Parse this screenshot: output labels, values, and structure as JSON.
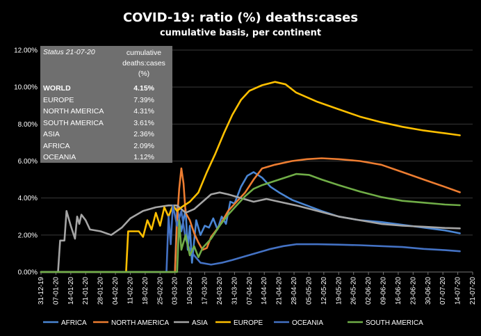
{
  "chart_data": {
    "type": "line",
    "title": "COVID-19:  ratio  (%)  deaths:cases",
    "subtitle": "cumulative basis, per continent",
    "y_ticks": [
      "0.00%",
      "2.00%",
      "4.00%",
      "6.00%",
      "8.00%",
      "10.00%",
      "12.00%"
    ],
    "ylim": [
      0,
      12
    ],
    "x_ticks": [
      "31-12-19",
      "07-01-20",
      "14-01-20",
      "21-01-20",
      "28-01-20",
      "04-02-20",
      "11-02-20",
      "18-02-20",
      "25-02-20",
      "03-03-20",
      "10-03-20",
      "17-03-20",
      "24-03-20",
      "31-03-20",
      "07-04-20",
      "14-04-20",
      "21-04-20",
      "28-04-20",
      "05-05-20",
      "12-05-20",
      "19-05-20",
      "26-05-20",
      "02-06-20",
      "09-06-20",
      "16-06-20",
      "23-06-20",
      "30-06-20",
      "07-07-20",
      "14-07-20",
      "21-07-20"
    ],
    "grid": true,
    "legend_position": "bottom",
    "series": [
      {
        "name": "AFRICA",
        "color": "#4a86d4",
        "points": [
          [
            0,
            0
          ],
          [
            63,
            0
          ],
          [
            64,
            3.5
          ],
          [
            66,
            2.2
          ],
          [
            68,
            3.4
          ],
          [
            69,
            1.2
          ],
          [
            70,
            2.5
          ],
          [
            71,
            0.5
          ],
          [
            73,
            2.8
          ],
          [
            75,
            2.0
          ],
          [
            77,
            2.5
          ],
          [
            79,
            2.4
          ],
          [
            81,
            2.9
          ],
          [
            83,
            2.3
          ],
          [
            85,
            3.0
          ],
          [
            87,
            2.6
          ],
          [
            89,
            3.8
          ],
          [
            91,
            3.7
          ],
          [
            94,
            4.6
          ],
          [
            97,
            5.2
          ],
          [
            100,
            5.4
          ],
          [
            104,
            5.1
          ],
          [
            108,
            4.6
          ],
          [
            112,
            4.3
          ],
          [
            118,
            3.9
          ],
          [
            125,
            3.6
          ],
          [
            132,
            3.3
          ],
          [
            140,
            3.0
          ],
          [
            150,
            2.8
          ],
          [
            160,
            2.7
          ],
          [
            170,
            2.55
          ],
          [
            180,
            2.4
          ],
          [
            190,
            2.25
          ],
          [
            197,
            2.09
          ]
        ]
      },
      {
        "name": "NORTH AMERICA",
        "color": "#ed7d31",
        "points": [
          [
            0,
            0
          ],
          [
            63,
            0
          ],
          [
            64,
            2.8
          ],
          [
            65,
            4.5
          ],
          [
            66,
            5.6
          ],
          [
            67,
            4.8
          ],
          [
            68,
            3.2
          ],
          [
            70,
            2.8
          ],
          [
            72,
            2.1
          ],
          [
            74,
            1.6
          ],
          [
            76,
            1.2
          ],
          [
            78,
            1.3
          ],
          [
            80,
            1.9
          ],
          [
            84,
            2.5
          ],
          [
            88,
            3.3
          ],
          [
            92,
            3.8
          ],
          [
            96,
            4.3
          ],
          [
            100,
            5.0
          ],
          [
            104,
            5.6
          ],
          [
            110,
            5.8
          ],
          [
            118,
            6.0
          ],
          [
            125,
            6.1
          ],
          [
            132,
            6.15
          ],
          [
            140,
            6.1
          ],
          [
            150,
            6.0
          ],
          [
            160,
            5.8
          ],
          [
            170,
            5.4
          ],
          [
            180,
            5.0
          ],
          [
            190,
            4.6
          ],
          [
            197,
            4.31
          ]
        ]
      },
      {
        "name": "ASIA",
        "color": "#a5a5a5",
        "points": [
          [
            0,
            0
          ],
          [
            8,
            0
          ],
          [
            9,
            1.7
          ],
          [
            11,
            1.7
          ],
          [
            12,
            3.3
          ],
          [
            14,
            2.5
          ],
          [
            16,
            1.8
          ],
          [
            17,
            3.0
          ],
          [
            18,
            2.6
          ],
          [
            19,
            3.1
          ],
          [
            21,
            2.8
          ],
          [
            23,
            2.3
          ],
          [
            28,
            2.2
          ],
          [
            33,
            2.0
          ],
          [
            38,
            2.4
          ],
          [
            42,
            2.9
          ],
          [
            48,
            3.3
          ],
          [
            54,
            3.5
          ],
          [
            60,
            3.6
          ],
          [
            64,
            3.6
          ],
          [
            68,
            3.2
          ],
          [
            72,
            3.4
          ],
          [
            76,
            3.8
          ],
          [
            80,
            4.2
          ],
          [
            84,
            4.3
          ],
          [
            88,
            4.2
          ],
          [
            94,
            4.0
          ],
          [
            100,
            3.8
          ],
          [
            106,
            3.95
          ],
          [
            112,
            3.8
          ],
          [
            120,
            3.6
          ],
          [
            130,
            3.3
          ],
          [
            140,
            3.0
          ],
          [
            150,
            2.8
          ],
          [
            160,
            2.6
          ],
          [
            170,
            2.5
          ],
          [
            180,
            2.45
          ],
          [
            190,
            2.38
          ],
          [
            197,
            2.36
          ]
        ]
      },
      {
        "name": "EUROPE",
        "color": "#ffc000",
        "points": [
          [
            0,
            0
          ],
          [
            40,
            0
          ],
          [
            41,
            2.2
          ],
          [
            43,
            2.2
          ],
          [
            46,
            2.2
          ],
          [
            48,
            1.9
          ],
          [
            50,
            2.8
          ],
          [
            52,
            2.3
          ],
          [
            54,
            3.2
          ],
          [
            56,
            2.5
          ],
          [
            58,
            3.5
          ],
          [
            60,
            3.0
          ],
          [
            62,
            3.6
          ],
          [
            64,
            3.3
          ],
          [
            66,
            3.5
          ],
          [
            70,
            3.8
          ],
          [
            74,
            4.3
          ],
          [
            78,
            5.4
          ],
          [
            82,
            6.4
          ],
          [
            86,
            7.5
          ],
          [
            90,
            8.5
          ],
          [
            94,
            9.3
          ],
          [
            98,
            9.8
          ],
          [
            104,
            10.1
          ],
          [
            110,
            10.28
          ],
          [
            115,
            10.15
          ],
          [
            120,
            9.7
          ],
          [
            130,
            9.2
          ],
          [
            140,
            8.8
          ],
          [
            150,
            8.4
          ],
          [
            160,
            8.1
          ],
          [
            170,
            7.85
          ],
          [
            180,
            7.65
          ],
          [
            190,
            7.5
          ],
          [
            197,
            7.39
          ]
        ]
      },
      {
        "name": "OCEANIA",
        "color": "#4472c4",
        "points": [
          [
            0,
            0
          ],
          [
            59,
            0
          ],
          [
            60,
            3.0
          ],
          [
            61,
            1.5
          ],
          [
            62,
            3.6
          ],
          [
            64,
            2.5
          ],
          [
            66,
            3.3
          ],
          [
            68,
            1.8
          ],
          [
            70,
            1.2
          ],
          [
            72,
            0.9
          ],
          [
            75,
            0.5
          ],
          [
            80,
            0.4
          ],
          [
            85,
            0.5
          ],
          [
            90,
            0.65
          ],
          [
            96,
            0.85
          ],
          [
            102,
            1.05
          ],
          [
            108,
            1.25
          ],
          [
            114,
            1.4
          ],
          [
            120,
            1.5
          ],
          [
            130,
            1.5
          ],
          [
            140,
            1.48
          ],
          [
            150,
            1.45
          ],
          [
            160,
            1.4
          ],
          [
            170,
            1.35
          ],
          [
            180,
            1.25
          ],
          [
            190,
            1.18
          ],
          [
            197,
            1.12
          ]
        ]
      },
      {
        "name": "SOUTH AMERICA",
        "color": "#70ad47",
        "points": [
          [
            0,
            0
          ],
          [
            64,
            0
          ],
          [
            65,
            2.8
          ],
          [
            66,
            1.2
          ],
          [
            68,
            2.0
          ],
          [
            70,
            0.9
          ],
          [
            72,
            1.4
          ],
          [
            74,
            0.8
          ],
          [
            76,
            1.3
          ],
          [
            80,
            1.8
          ],
          [
            84,
            2.5
          ],
          [
            88,
            3.1
          ],
          [
            92,
            3.6
          ],
          [
            96,
            4.1
          ],
          [
            100,
            4.5
          ],
          [
            104,
            4.7
          ],
          [
            108,
            4.85
          ],
          [
            112,
            5.0
          ],
          [
            116,
            5.15
          ],
          [
            120,
            5.3
          ],
          [
            126,
            5.25
          ],
          [
            132,
            5.0
          ],
          [
            140,
            4.7
          ],
          [
            150,
            4.35
          ],
          [
            160,
            4.05
          ],
          [
            170,
            3.85
          ],
          [
            180,
            3.75
          ],
          [
            190,
            3.65
          ],
          [
            197,
            3.61
          ]
        ]
      }
    ]
  },
  "status_table": {
    "status_label": "Status 21-07-20",
    "header": "cumulative deaths:cases (%)",
    "rows": [
      {
        "name": "WORLD",
        "value": "4.15%"
      },
      {
        "name": "EUROPE",
        "value": "7.39%"
      },
      {
        "name": "NORTH AMERICA",
        "value": "4.31%"
      },
      {
        "name": "SOUTH AMERICA",
        "value": "3.61%"
      },
      {
        "name": "ASIA",
        "value": "2.36%"
      },
      {
        "name": "AFRICA",
        "value": "2.09%"
      },
      {
        "name": "OCEANIA",
        "value": "1.12%"
      }
    ]
  }
}
